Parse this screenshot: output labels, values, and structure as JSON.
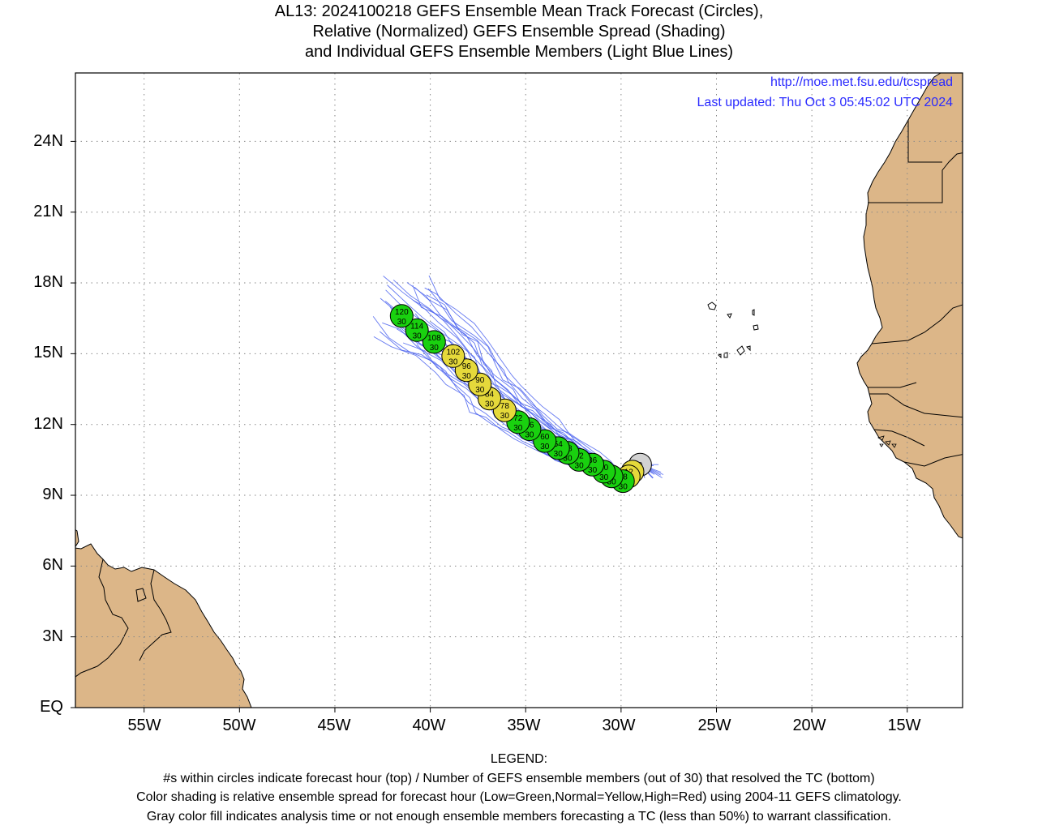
{
  "title": {
    "line1": "AL13: 2024100218 GEFS Ensemble Mean Track Forecast (Circles),",
    "line2": "Relative (Normalized) GEFS Ensemble Spread (Shading)",
    "line3": "and Individual GEFS Ensemble Members (Light Blue Lines)"
  },
  "credits": {
    "url": "http://moe.met.fsu.edu/tcspread",
    "updated": "Last updated: Thu Oct 3 05:45:02 UTC 2024"
  },
  "axes": {
    "lat_labels": [
      "24N",
      "21N",
      "18N",
      "15N",
      "12N",
      "9N",
      "6N",
      "3N",
      "EQ"
    ],
    "lon_labels": [
      "55W",
      "50W",
      "45W",
      "40W",
      "35W",
      "30W",
      "25W",
      "20W",
      "15W"
    ],
    "lat_range": [
      0,
      26.9
    ],
    "lon_range": [
      -58.6,
      -12.1
    ]
  },
  "colors": {
    "land": "#dcb688",
    "low_spread": "#19d10f",
    "normal_spread": "#e5d93b",
    "analysis": "#d2d2d2",
    "member_tracks": "#4a62ee",
    "credit_text": "#2a2aff"
  },
  "mean_track": [
    {
      "hour": "0",
      "members": "",
      "lat": 10.3,
      "lon": -29.0,
      "spread": "analysis"
    },
    {
      "hour": "6",
      "members": "",
      "lat": 10.0,
      "lon": -29.4,
      "spread": "normal"
    },
    {
      "hour": "12",
      "members": "30",
      "lat": 9.8,
      "lon": -29.6,
      "spread": "normal"
    },
    {
      "hour": "18",
      "members": "30",
      "lat": 9.6,
      "lon": -29.9,
      "spread": "low"
    },
    {
      "hour": "24",
      "members": "30",
      "lat": 9.8,
      "lon": -30.5,
      "spread": "low"
    },
    {
      "hour": "30",
      "members": "30",
      "lat": 10.0,
      "lon": -30.9,
      "spread": "low"
    },
    {
      "hour": "36",
      "members": "30",
      "lat": 10.3,
      "lon": -31.5,
      "spread": "low"
    },
    {
      "hour": "42",
      "members": "30",
      "lat": 10.5,
      "lon": -32.2,
      "spread": "low"
    },
    {
      "hour": "48",
      "members": "30",
      "lat": 10.8,
      "lon": -32.8,
      "spread": "low"
    },
    {
      "hour": "54",
      "members": "30",
      "lat": 11.0,
      "lon": -33.3,
      "spread": "low"
    },
    {
      "hour": "60",
      "members": "30",
      "lat": 11.3,
      "lon": -34.0,
      "spread": "low"
    },
    {
      "hour": "66",
      "members": "30",
      "lat": 11.8,
      "lon": -34.8,
      "spread": "low"
    },
    {
      "hour": "72",
      "members": "30",
      "lat": 12.1,
      "lon": -35.4,
      "spread": "low"
    },
    {
      "hour": "78",
      "members": "30",
      "lat": 12.6,
      "lon": -36.1,
      "spread": "normal"
    },
    {
      "hour": "84",
      "members": "30",
      "lat": 13.1,
      "lon": -36.9,
      "spread": "normal"
    },
    {
      "hour": "90",
      "members": "30",
      "lat": 13.7,
      "lon": -37.4,
      "spread": "normal"
    },
    {
      "hour": "96",
      "members": "30",
      "lat": 14.3,
      "lon": -38.1,
      "spread": "normal"
    },
    {
      "hour": "102",
      "members": "30",
      "lat": 14.9,
      "lon": -38.8,
      "spread": "normal"
    },
    {
      "hour": "108",
      "members": "30",
      "lat": 15.5,
      "lon": -39.8,
      "spread": "low"
    },
    {
      "hour": "114",
      "members": "30",
      "lat": 16.0,
      "lon": -40.7,
      "spread": "low"
    },
    {
      "hour": "120",
      "members": "30",
      "lat": 16.6,
      "lon": -41.5,
      "spread": "low"
    }
  ],
  "legend": {
    "heading": "LEGEND:",
    "line1": "#s within circles indicate forecast hour (top) / Number of GEFS ensemble members (out of 30) that resolved the TC (bottom)",
    "line2": "Color shading is relative ensemble spread for forecast hour (Low=Green,Normal=Yellow,High=Red) using 2004-11 GEFS climatology.",
    "line3": "Gray color fill indicates analysis time or not enough ensemble members forecasting a TC (less than 50%) to warrant classification."
  }
}
